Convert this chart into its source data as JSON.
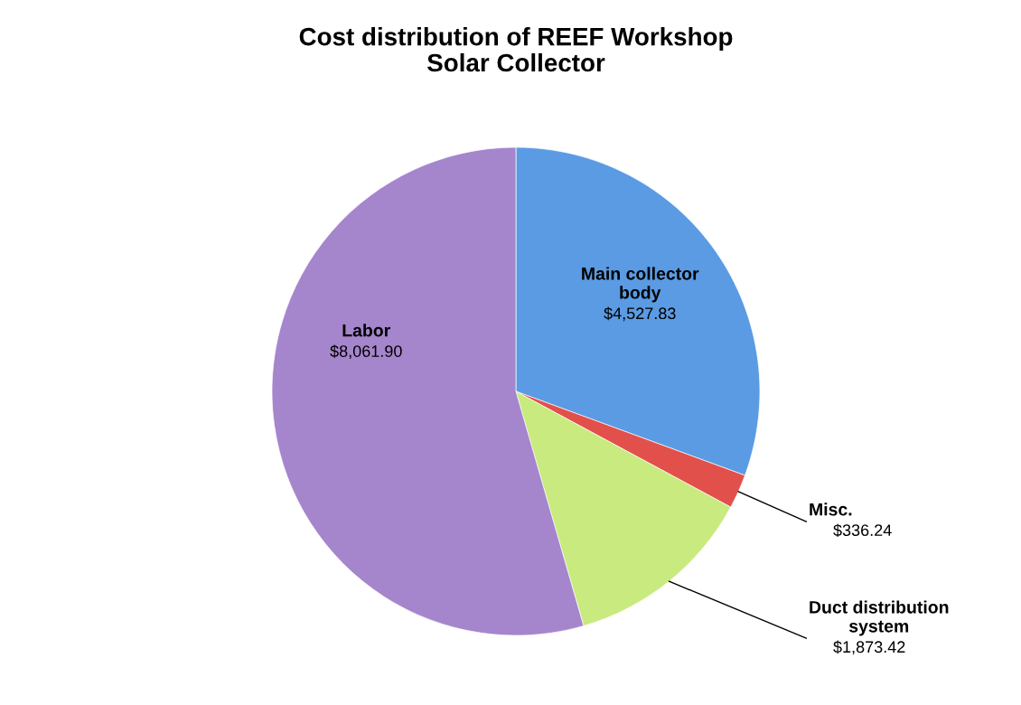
{
  "chart_data": {
    "type": "pie",
    "title": "Cost distribution of REEF Workshop\nSolar Collector",
    "categories": [
      "Main collector\nbody",
      "Misc.",
      "Duct distribution\nsystem",
      "Labor"
    ],
    "values": [
      4527.83,
      336.24,
      1873.42,
      8061.9
    ],
    "value_labels": [
      "$4,527.83",
      "$336.24",
      "$1,873.42",
      "$8,061.90"
    ],
    "colors": [
      "#5a9be3",
      "#e2504b",
      "#c8ea7e",
      "#a585cc"
    ],
    "legend": false
  }
}
